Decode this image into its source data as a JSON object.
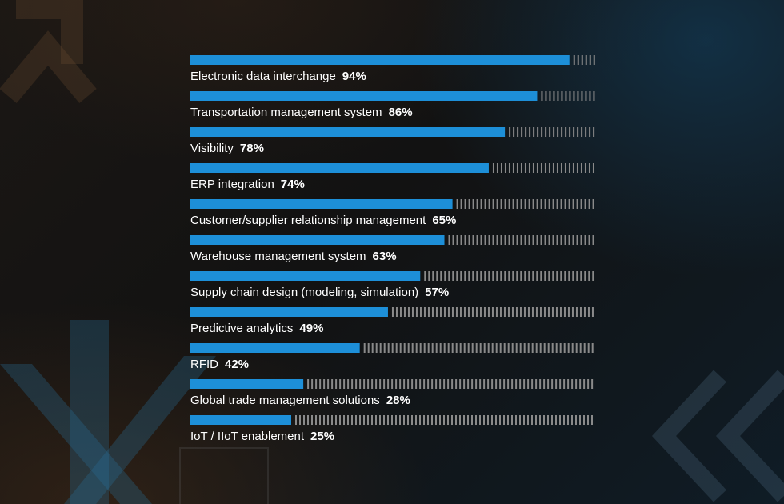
{
  "chart_data": {
    "type": "bar",
    "orientation": "horizontal",
    "categories": [
      "Electronic data interchange",
      "Transportation management system",
      "Visibility",
      "ERP integration",
      "Customer/supplier relationship management",
      "Warehouse management system",
      "Supply chain design (modeling, simulation)",
      "Predictive analytics",
      "RFID",
      "Global trade management solutions",
      "IoT / IIoT enablement"
    ],
    "values": [
      94,
      86,
      78,
      74,
      65,
      63,
      57,
      49,
      42,
      28,
      25
    ],
    "value_labels": [
      "94%",
      "86%",
      "78%",
      "74%",
      "65%",
      "63%",
      "57%",
      "49%",
      "42%",
      "28%",
      "25%"
    ],
    "xlim": [
      0,
      100
    ],
    "grid": false,
    "legend": "none",
    "colors": {
      "bar": "#1d8fd8",
      "remainder_ticks": "#8a8a8a",
      "label": "#ffffff"
    }
  }
}
